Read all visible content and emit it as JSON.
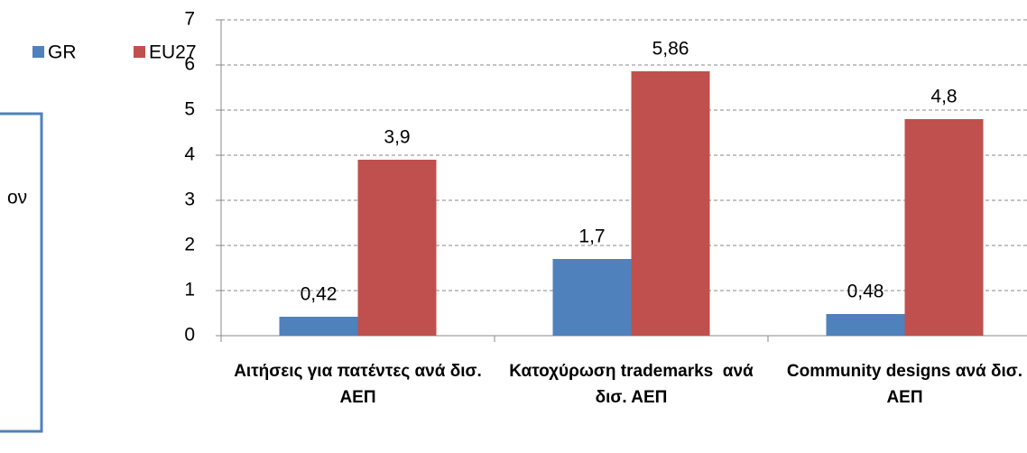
{
  "fragment_text": "ον",
  "chart_data": {
    "type": "bar",
    "categories": [
      "Αιτήσεις για πατέντες ανά δισ. ΑΕΠ",
      "Κατοχύρωση trademarks  ανά δισ. ΑΕΠ",
      "Community designs ανά δισ. ΑΕΠ"
    ],
    "series": [
      {
        "name": "GR",
        "color": "#4f81bd",
        "values": [
          0.42,
          1.7,
          0.48
        ],
        "value_labels": [
          "0,42",
          "1,7",
          "0,48"
        ]
      },
      {
        "name": "EU27",
        "color": "#c0504d",
        "values": [
          3.9,
          5.86,
          4.8
        ],
        "value_labels": [
          "3,9",
          "5,86",
          "4,8"
        ]
      }
    ],
    "ylim": [
      0,
      7
    ],
    "yticks": [
      0,
      1,
      2,
      3,
      4,
      5,
      6,
      7
    ],
    "grid": true,
    "legend": "top-left"
  }
}
